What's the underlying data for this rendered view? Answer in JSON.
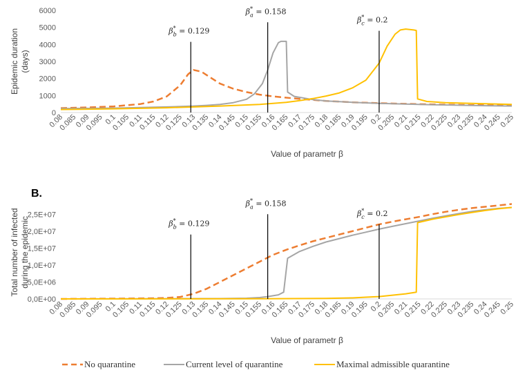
{
  "legend": [
    {
      "name": "No quarantine",
      "color": "#ED7D31",
      "dash": true
    },
    {
      "name": "Current level of quarantine",
      "color": "#A5A5A5",
      "dash": false
    },
    {
      "name": "Maximal admissible quarantine",
      "color": "#FFC000",
      "dash": false
    }
  ],
  "chart_data": [
    {
      "type": "line",
      "panel_label": "",
      "xlabel": "Value of parametr β",
      "ylabel_lines": [
        "Epidemic duration",
        "(days)"
      ],
      "ylim": [
        0,
        6000
      ],
      "yticks": [
        0,
        1000,
        2000,
        3000,
        4000,
        5000,
        6000
      ],
      "ytick_labels": [
        "0",
        "1000",
        "2000",
        "3000",
        "4000",
        "5000",
        "6000"
      ],
      "x_tick_labels": [
        "0.08",
        "0.085",
        "0.09",
        "0.095",
        "0.1",
        "0.105",
        "0.11",
        "0.115",
        "0.12",
        "0.125",
        "0.13",
        "0.135",
        "0.14",
        "0.145",
        "0.15",
        "0.155",
        "0.16",
        "0.165",
        "0.17",
        "0.175",
        "0.18",
        "0.185",
        "0.19",
        "0.195",
        "0.2",
        "0.205",
        "0.21",
        "0.215",
        "0.22",
        "0.225",
        "0.23",
        "0.235",
        "0.24",
        "0.245",
        "0.25"
      ],
      "xlim": [
        0.08,
        0.25
      ],
      "annotations": [
        {
          "sym": "β",
          "sub": "b",
          "text": " = 0.129",
          "x": 0.129,
          "ytop": 4150
        },
        {
          "sym": "β",
          "sub": "a",
          "text": " = 0.158",
          "x": 0.158,
          "ytop": 5300
        },
        {
          "sym": "β",
          "sub": "c",
          "text": " = 0.2",
          "x": 0.2,
          "ytop": 4800
        }
      ],
      "series": [
        {
          "name": "No quarantine",
          "points": [
            [
              0.08,
              260
            ],
            [
              0.09,
              300
            ],
            [
              0.1,
              360
            ],
            [
              0.11,
              500
            ],
            [
              0.115,
              650
            ],
            [
              0.12,
              950
            ],
            [
              0.125,
              1600
            ],
            [
              0.128,
              2250
            ],
            [
              0.13,
              2500
            ],
            [
              0.133,
              2400
            ],
            [
              0.137,
              2000
            ],
            [
              0.14,
              1700
            ],
            [
              0.145,
              1400
            ],
            [
              0.15,
              1200
            ],
            [
              0.155,
              1050
            ],
            [
              0.16,
              950
            ],
            [
              0.17,
              800
            ],
            [
              0.18,
              680
            ],
            [
              0.19,
              600
            ],
            [
              0.2,
              550
            ],
            [
              0.21,
              510
            ],
            [
              0.22,
              480
            ],
            [
              0.23,
              450
            ],
            [
              0.24,
              430
            ],
            [
              0.25,
              410
            ]
          ]
        },
        {
          "name": "Current level of quarantine",
          "points": [
            [
              0.08,
              230
            ],
            [
              0.1,
              260
            ],
            [
              0.11,
              290
            ],
            [
              0.12,
              330
            ],
            [
              0.13,
              380
            ],
            [
              0.135,
              420
            ],
            [
              0.14,
              480
            ],
            [
              0.145,
              580
            ],
            [
              0.15,
              780
            ],
            [
              0.153,
              1100
            ],
            [
              0.156,
              1700
            ],
            [
              0.158,
              2500
            ],
            [
              0.16,
              3500
            ],
            [
              0.162,
              4100
            ],
            [
              0.163,
              4180
            ],
            [
              0.165,
              4180
            ],
            [
              0.1655,
              1200
            ],
            [
              0.168,
              950
            ],
            [
              0.175,
              760
            ],
            [
              0.18,
              680
            ],
            [
              0.19,
              600
            ],
            [
              0.2,
              540
            ],
            [
              0.21,
              500
            ],
            [
              0.22,
              460
            ],
            [
              0.23,
              430
            ],
            [
              0.24,
              400
            ],
            [
              0.25,
              380
            ]
          ]
        },
        {
          "name": "Maximal admissible quarantine",
          "points": [
            [
              0.08,
              180
            ],
            [
              0.1,
              220
            ],
            [
              0.12,
              280
            ],
            [
              0.14,
              380
            ],
            [
              0.155,
              480
            ],
            [
              0.165,
              600
            ],
            [
              0.17,
              700
            ],
            [
              0.175,
              820
            ],
            [
              0.18,
              970
            ],
            [
              0.185,
              1150
            ],
            [
              0.19,
              1450
            ],
            [
              0.195,
              1900
            ],
            [
              0.2,
              2900
            ],
            [
              0.203,
              3900
            ],
            [
              0.206,
              4600
            ],
            [
              0.208,
              4850
            ],
            [
              0.21,
              4900
            ],
            [
              0.213,
              4850
            ],
            [
              0.214,
              4820
            ],
            [
              0.2145,
              800
            ],
            [
              0.218,
              650
            ],
            [
              0.225,
              580
            ],
            [
              0.235,
              540
            ],
            [
              0.245,
              500
            ],
            [
              0.25,
              480
            ]
          ]
        }
      ]
    },
    {
      "type": "line",
      "panel_label": "B.",
      "xlabel": "Value of parametr β",
      "ylabel_lines": [
        "Total number of infected",
        "during the epidemic"
      ],
      "ylim": [
        0,
        27500000
      ],
      "yticks": [
        0,
        5000000,
        10000000,
        15000000,
        20000000,
        25000000
      ],
      "ytick_labels": [
        "0,0E+00",
        "5,0E+06",
        "1,0E+07",
        "1,5E+07",
        "2,0E+07",
        "2,5E+07"
      ],
      "x_tick_labels": [
        "0.08",
        "0.085",
        "0.09",
        "0.095",
        "0.1",
        "0.105",
        "0.11",
        "0.115",
        "0.12",
        "0.125",
        "0.13",
        "0.135",
        "0.14",
        "0.145",
        "0.15",
        "0.155",
        "0.16",
        "0.165",
        "0.17",
        "0.175",
        "0.18",
        "0.185",
        "0.19",
        "0.195",
        "0.2",
        "0.205",
        "0.21",
        "0.215",
        "0.22",
        "0.225",
        "0.23",
        "0.235",
        "0.24",
        "0.245",
        "0.25"
      ],
      "xlim": [
        0.08,
        0.25
      ],
      "annotations": [
        {
          "sym": "β",
          "sub": "b",
          "text": " = 0.129",
          "x": 0.129,
          "ytop": 19000000
        },
        {
          "sym": "β",
          "sub": "a",
          "text": " = 0.158",
          "x": 0.158,
          "ytop": 25000000
        },
        {
          "sym": "β",
          "sub": "c",
          "text": " = 0.2",
          "x": 0.2,
          "ytop": 22000000
        }
      ],
      "series": [
        {
          "name": "No quarantine",
          "points": [
            [
              0.08,
              0
            ],
            [
              0.1,
              100000
            ],
            [
              0.115,
              200000
            ],
            [
              0.12,
              300000
            ],
            [
              0.125,
              600000
            ],
            [
              0.13,
              1500000
            ],
            [
              0.135,
              3000000
            ],
            [
              0.14,
              5000000
            ],
            [
              0.145,
              7000000
            ],
            [
              0.15,
              9000000
            ],
            [
              0.155,
              11000000
            ],
            [
              0.16,
              13000000
            ],
            [
              0.165,
              14500000
            ],
            [
              0.17,
              15800000
            ],
            [
              0.175,
              17000000
            ],
            [
              0.18,
              18000000
            ],
            [
              0.185,
              19000000
            ],
            [
              0.19,
              20000000
            ],
            [
              0.195,
              21000000
            ],
            [
              0.2,
              22000000
            ],
            [
              0.205,
              22800000
            ],
            [
              0.21,
              23500000
            ],
            [
              0.215,
              24200000
            ],
            [
              0.22,
              25000000
            ],
            [
              0.225,
              25700000
            ],
            [
              0.23,
              26300000
            ],
            [
              0.235,
              26800000
            ],
            [
              0.24,
              27200000
            ],
            [
              0.245,
              27600000
            ],
            [
              0.25,
              28000000
            ]
          ]
        },
        {
          "name": "Current level of quarantine",
          "points": [
            [
              0.08,
              0
            ],
            [
              0.14,
              100000
            ],
            [
              0.15,
              200000
            ],
            [
              0.155,
              400000
            ],
            [
              0.158,
              700000
            ],
            [
              0.162,
              1200000
            ],
            [
              0.164,
              2000000
            ],
            [
              0.1655,
              12000000
            ],
            [
              0.17,
              14000000
            ],
            [
              0.175,
              15500000
            ],
            [
              0.18,
              16800000
            ],
            [
              0.185,
              17800000
            ],
            [
              0.19,
              18800000
            ],
            [
              0.195,
              19700000
            ],
            [
              0.2,
              20600000
            ],
            [
              0.205,
              21400000
            ],
            [
              0.21,
              22200000
            ],
            [
              0.215,
              23000000
            ],
            [
              0.22,
              23800000
            ],
            [
              0.225,
              24500000
            ],
            [
              0.23,
              25200000
            ],
            [
              0.235,
              25800000
            ],
            [
              0.24,
              26300000
            ],
            [
              0.245,
              26700000
            ],
            [
              0.25,
              27000000
            ]
          ]
        },
        {
          "name": "Maximal admissible quarantine",
          "points": [
            [
              0.08,
              0
            ],
            [
              0.15,
              50000
            ],
            [
              0.18,
              150000
            ],
            [
              0.19,
              300000
            ],
            [
              0.195,
              500000
            ],
            [
              0.2,
              700000
            ],
            [
              0.205,
              1100000
            ],
            [
              0.21,
              1500000
            ],
            [
              0.214,
              2000000
            ],
            [
              0.2145,
              22500000
            ],
            [
              0.22,
              23500000
            ],
            [
              0.225,
              24200000
            ],
            [
              0.23,
              24900000
            ],
            [
              0.235,
              25500000
            ],
            [
              0.24,
              26100000
            ],
            [
              0.245,
              26600000
            ],
            [
              0.25,
              27000000
            ]
          ]
        }
      ]
    }
  ]
}
